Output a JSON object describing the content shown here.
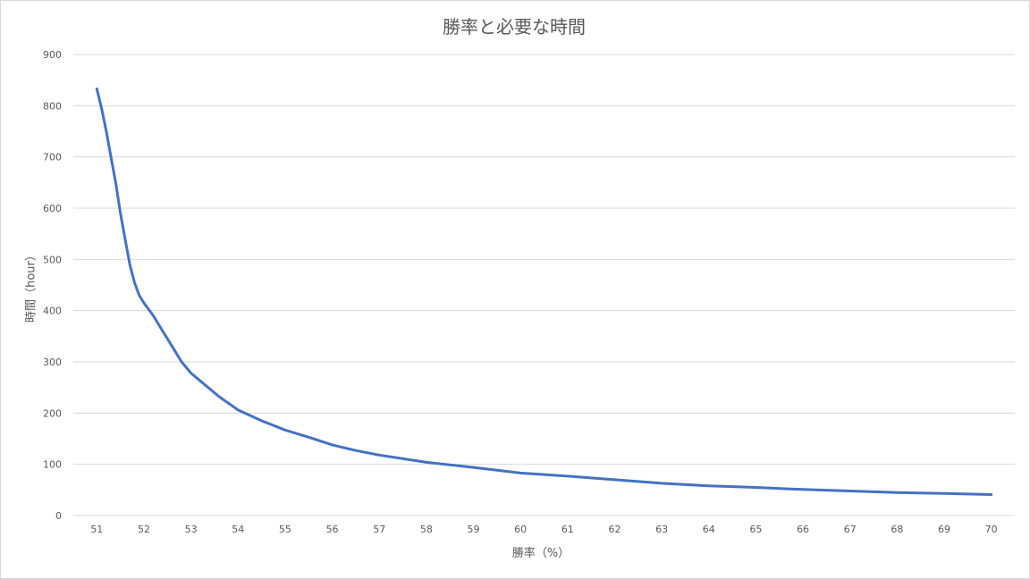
{
  "chart_data": {
    "type": "line",
    "title": "勝率と必要な時間",
    "xlabel": "勝率（%）",
    "ylabel": "時間（hour）",
    "categories": [
      "51",
      "52",
      "53",
      "54",
      "55",
      "56",
      "57",
      "58",
      "59",
      "60",
      "61",
      "62",
      "63",
      "64",
      "65",
      "66",
      "67",
      "68",
      "69",
      "70"
    ],
    "ylim": [
      0,
      900
    ],
    "yticks": [
      0,
      100,
      200,
      300,
      400,
      500,
      600,
      700,
      800,
      900
    ],
    "grid": true,
    "legend": "none",
    "series": [
      {
        "x": [
          51.0,
          51.1,
          51.2,
          51.3,
          51.4,
          51.5,
          51.6,
          51.7,
          51.8,
          51.9,
          52.0,
          52.2,
          52.4,
          52.6,
          52.8,
          53.0,
          53.3,
          53.6,
          54.0,
          54.5,
          55.0,
          55.5,
          56.0,
          56.5,
          57.0,
          58.0,
          59.0,
          60.0,
          61.0,
          62.0,
          63.0,
          64.0,
          65.0,
          66.0,
          67.0,
          68.0,
          69.0,
          70.0
        ],
        "values": [
          833,
          795,
          750,
          700,
          650,
          590,
          540,
          490,
          455,
          430,
          415,
          390,
          360,
          330,
          300,
          278,
          255,
          232,
          206,
          185,
          167,
          153,
          138,
          127,
          118,
          104,
          94,
          83,
          77,
          70,
          63,
          58,
          55,
          51,
          48,
          45,
          43,
          41
        ],
        "color": "#4472c4"
      }
    ]
  }
}
